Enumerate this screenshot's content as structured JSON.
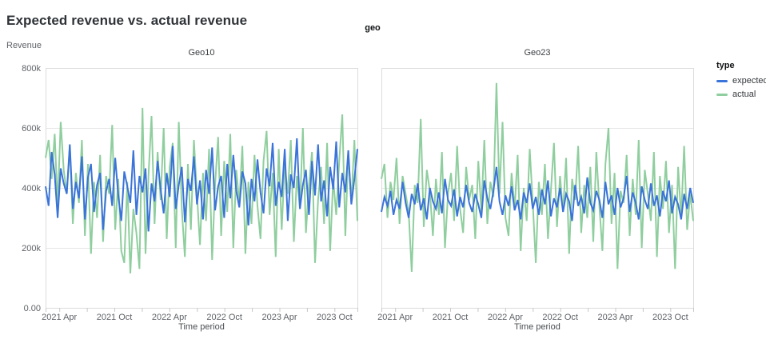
{
  "page": {
    "title": "Expected revenue vs. actual revenue"
  },
  "chart_data": {
    "type": "line",
    "title": "Expected revenue vs. actual revenue",
    "facet_field": "geo",
    "legend_title": "type",
    "legend_position": "right",
    "y_axis_title": "Revenue",
    "x_axis_title": "Time period",
    "grid": "horizontal",
    "y_unit": "thousands",
    "ylim_k": [
      0,
      800
    ],
    "y_ticks": [
      {
        "v": 0,
        "label": "0.00"
      },
      {
        "v": 200,
        "label": "200k"
      },
      {
        "v": 400,
        "label": "400k"
      },
      {
        "v": 600,
        "label": "600k"
      },
      {
        "v": 800,
        "label": "800k"
      }
    ],
    "x_domain": {
      "start": "2021 Jan",
      "end": "2023 Dec",
      "points_per_series": 104
    },
    "x_ticks": [
      {
        "m": 3,
        "label": "2021 Apr"
      },
      {
        "m": 6,
        "label": ""
      },
      {
        "m": 9,
        "label": "2021 Oct"
      },
      {
        "m": 12,
        "label": ""
      },
      {
        "m": 15,
        "label": "2022 Apr"
      },
      {
        "m": 18,
        "label": ""
      },
      {
        "m": 21,
        "label": "2022 Oct"
      },
      {
        "m": 24,
        "label": ""
      },
      {
        "m": 27,
        "label": "2023 Apr"
      },
      {
        "m": 30,
        "label": ""
      },
      {
        "m": 33,
        "label": "2023 Oct"
      }
    ],
    "series_meta": [
      {
        "name": "expected",
        "color": "#3a73d9"
      },
      {
        "name": "actual",
        "color": "#8fce9e"
      }
    ],
    "colors": {
      "grid": "#e5e5e5",
      "frame": "#dcdcdc",
      "tick": "#c8c8c8",
      "tick_text": "#5f6368"
    },
    "facets": [
      {
        "label": "Geo10",
        "series": [
          {
            "name": "expected",
            "values_k": [
              405,
              340,
              520,
              445,
              300,
              465,
              415,
              380,
              545,
              330,
              420,
              365,
              505,
              295,
              435,
              480,
              320,
              410,
              450,
              260,
              390,
              430,
              340,
              500,
              375,
              290,
              455,
              405,
              350,
              525,
              310,
              440,
              385,
              465,
              255,
              415,
              355,
              490,
              395,
              315,
              450,
              370,
              540,
              330,
              410,
              470,
              285,
              430,
              390,
              505,
              345,
              425,
              295,
              460,
              380,
              535,
              325,
              405,
              440,
              300,
              480,
              365,
              510,
              390,
              335,
              455,
              415,
              275,
              430,
              355,
              495,
              385,
              315,
              465,
              405,
              550,
              340,
              420,
              370,
              530,
              290,
              445,
              400,
              565,
              330,
              410,
              460,
              310,
              490,
              375,
              545,
              355,
              425,
              305,
              470,
              395,
              555,
              335,
              450,
              385,
              525,
              345,
              430,
              530
            ]
          },
          {
            "name": "actual",
            "values_k": [
              500,
              560,
              430,
              580,
              340,
              620,
              460,
              380,
              540,
              280,
              450,
              350,
              560,
              240,
              480,
              180,
              420,
              300,
              510,
              220,
              440,
              380,
              610,
              260,
              430,
              190,
              150,
              420,
              115,
              330,
              250,
              130,
              667,
              180,
              440,
              640,
              280,
              520,
              360,
              600,
              230,
              470,
              550,
              200,
              620,
              330,
              170,
              480,
              260,
              560,
              380,
              210,
              450,
              290,
              530,
              160,
              410,
              570,
              240,
              490,
              320,
              580,
              200,
              460,
              350,
              540,
              180,
              420,
              280,
              510,
              340,
              230,
              490,
              590,
              310,
              450,
              170,
              530,
              260,
              480,
              380,
              560,
              220,
              440,
              330,
              600,
              250,
              410,
              520,
              150,
              360,
              470,
              280,
              550,
              190,
              430,
              310,
              490,
              645,
              240,
              520,
              350,
              560,
              290
            ]
          }
        ]
      },
      {
        "label": "Geo23",
        "series": [
          {
            "name": "expected",
            "values_k": [
              320,
              370,
              340,
              390,
              310,
              360,
              330,
              420,
              350,
              300,
              380,
              345,
              415,
              325,
              365,
              295,
              400,
              355,
              330,
              385,
              315,
              430,
              360,
              340,
              395,
              305,
              370,
              335,
              410,
              350,
              320,
              380,
              345,
              300,
              425,
              365,
              330,
              390,
              470,
              355,
              310,
              375,
              340,
              405,
              325,
              360,
              295,
              385,
              350,
              415,
              330,
              370,
              310,
              395,
              345,
              425,
              305,
              365,
              335,
              400,
              320,
              380,
              355,
              290,
              410,
              340,
              370,
              315,
              435,
              350,
              325,
              390,
              360,
              300,
              420,
              345,
              375,
              310,
              400,
              335,
              365,
              440,
              320,
              385,
              350,
              295,
              405,
              360,
              330,
              415,
              340,
              375,
              305,
              390,
              355,
              425,
              315,
              370,
              345,
              295,
              380,
              330,
              400,
              350
            ]
          },
          {
            "name": "actual",
            "values_k": [
              430,
              480,
              300,
              420,
              360,
              500,
              280,
              440,
              380,
              320,
              120,
              410,
              350,
              630,
              270,
              460,
              390,
              240,
              430,
              310,
              520,
              200,
              380,
              450,
              290,
              540,
              330,
              250,
              470,
              360,
              410,
              230,
              490,
              320,
              560,
              280,
              420,
              370,
              750,
              380,
              620,
              300,
              240,
              450,
              330,
              510,
              190,
              400,
              290,
              530,
              350,
              150,
              420,
              310,
              480,
              230,
              390,
              550,
              270,
              440,
              320,
              500,
              180,
              430,
              360,
              540,
              250,
              410,
              300,
              470,
              220,
              520,
              340,
              190,
              480,
              600,
              280,
              450,
              130,
              390,
              350,
              510,
              240,
              430,
              310,
              560,
              200,
              460,
              380,
              290,
              520,
              170,
              440,
              330,
              490,
              250,
              410,
              130,
              470,
              300,
              540,
              260,
              380,
              290
            ]
          }
        ]
      }
    ]
  }
}
